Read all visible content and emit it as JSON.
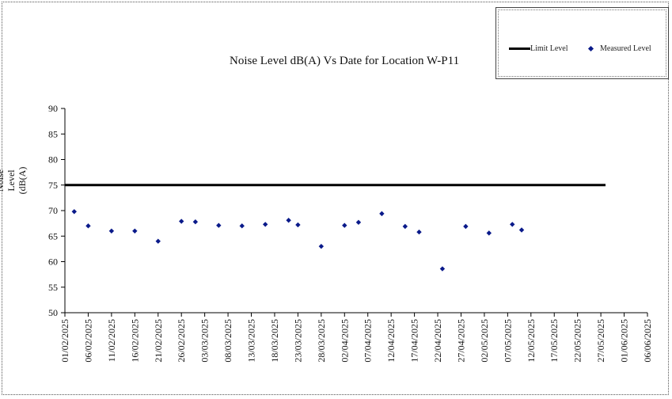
{
  "chart_data": {
    "type": "scatter",
    "title": "Noise Level dB(A) Vs Date for Location W-P11",
    "ylabel_lines": [
      "Noise Level",
      "(dB(A)"
    ],
    "ylim": [
      50,
      90
    ],
    "yticks": [
      50,
      55,
      60,
      65,
      70,
      75,
      80,
      85,
      90
    ],
    "xlim": [
      "01/02/2025",
      "06/06/2025"
    ],
    "xticks": [
      "01/02/2025",
      "06/02/2025",
      "11/02/2025",
      "16/02/2025",
      "21/02/2025",
      "26/02/2025",
      "03/03/2025",
      "08/03/2025",
      "13/03/2025",
      "18/03/2025",
      "23/03/2025",
      "28/03/2025",
      "02/04/2025",
      "07/04/2025",
      "12/04/2025",
      "17/04/2025",
      "22/04/2025",
      "27/04/2025",
      "02/05/2025",
      "07/05/2025",
      "12/05/2025",
      "17/05/2025",
      "22/05/2025",
      "27/05/2025",
      "01/06/2025",
      "06/06/2025"
    ],
    "legend_position": "top-right",
    "grid": false,
    "series": [
      {
        "name": "Limit Level",
        "kind": "line",
        "color": "#000000",
        "points": [
          {
            "x": "01/02/2025",
            "y": 75
          },
          {
            "x": "28/05/2025",
            "y": 75
          }
        ]
      },
      {
        "name": "Measured Level",
        "kind": "marker",
        "color": "#0a1a8a",
        "points": [
          {
            "x": "03/02/2025",
            "y": 69.8
          },
          {
            "x": "06/02/2025",
            "y": 67.0
          },
          {
            "x": "11/02/2025",
            "y": 66.0
          },
          {
            "x": "16/02/2025",
            "y": 66.0
          },
          {
            "x": "21/02/2025",
            "y": 64.0
          },
          {
            "x": "26/02/2025",
            "y": 67.9
          },
          {
            "x": "01/03/2025",
            "y": 67.8
          },
          {
            "x": "06/03/2025",
            "y": 67.1
          },
          {
            "x": "11/03/2025",
            "y": 67.0
          },
          {
            "x": "16/03/2025",
            "y": 67.3
          },
          {
            "x": "21/03/2025",
            "y": 68.1
          },
          {
            "x": "23/03/2025",
            "y": 67.2
          },
          {
            "x": "28/03/2025",
            "y": 63.0
          },
          {
            "x": "02/04/2025",
            "y": 67.1
          },
          {
            "x": "05/04/2025",
            "y": 67.7
          },
          {
            "x": "10/04/2025",
            "y": 69.4
          },
          {
            "x": "15/04/2025",
            "y": 66.9
          },
          {
            "x": "18/04/2025",
            "y": 65.8
          },
          {
            "x": "23/04/2025",
            "y": 58.6
          },
          {
            "x": "28/04/2025",
            "y": 66.9
          },
          {
            "x": "03/05/2025",
            "y": 65.6
          },
          {
            "x": "08/05/2025",
            "y": 67.3
          },
          {
            "x": "10/05/2025",
            "y": 66.2
          }
        ]
      }
    ]
  }
}
